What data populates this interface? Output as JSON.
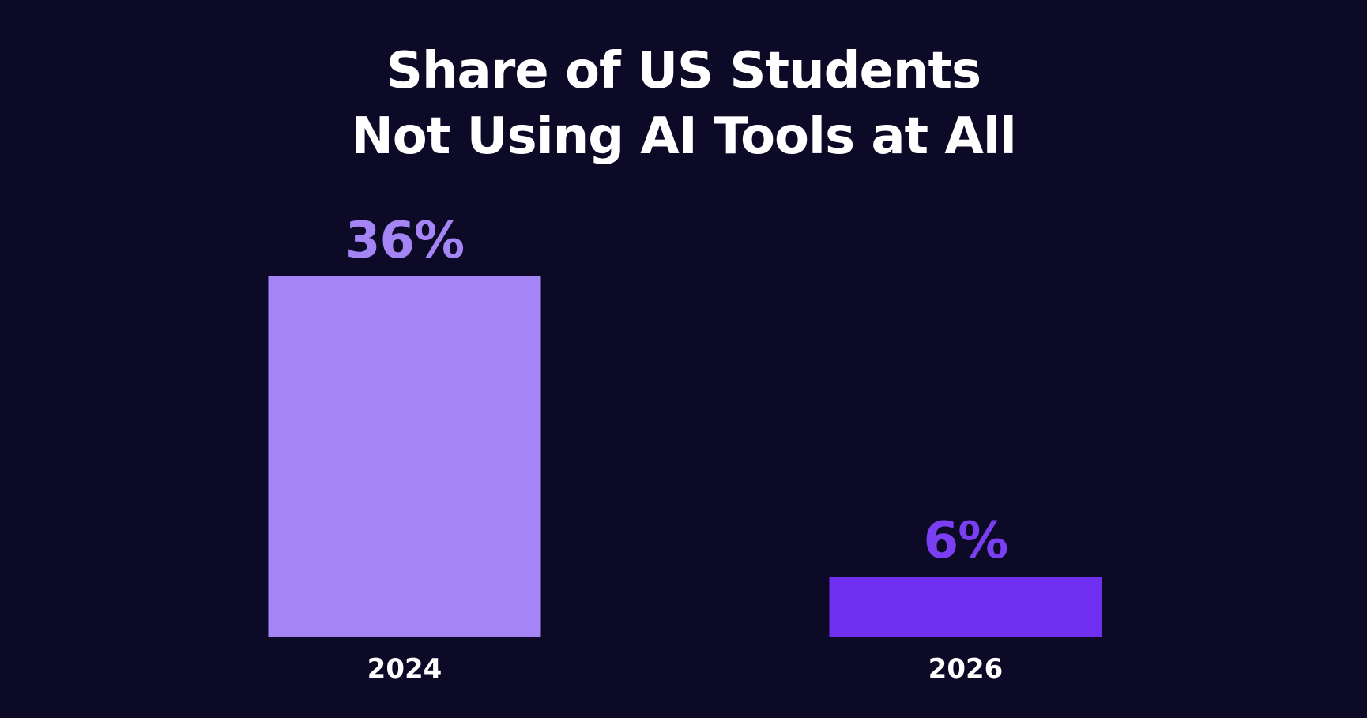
{
  "chart_data": {
    "type": "bar",
    "title": "Share of US Students Not Using AI Tools at All",
    "title_lines": [
      "Share of US Students",
      "Not Using AI Tools at All"
    ],
    "categories": [
      "2024",
      "2026"
    ],
    "values": [
      36,
      6
    ],
    "data_labels": [
      "36%",
      "6%"
    ],
    "unit": "%",
    "ylim": [
      0,
      40
    ],
    "grid": false,
    "legend": "none",
    "bar_colors": [
      "#a585f5",
      "#7030f0"
    ],
    "label_colors": [
      "#a585f5",
      "#7a3ff2"
    ]
  },
  "colors": {
    "background": "#0c0a26",
    "title": "#ffffff",
    "tick_label": "#ffffff"
  }
}
